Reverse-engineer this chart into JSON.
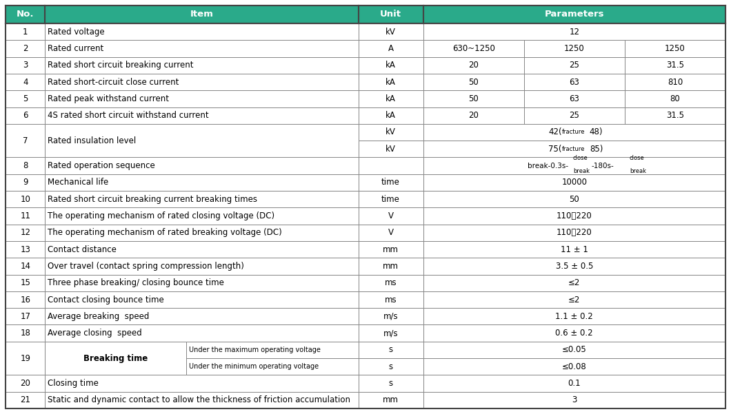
{
  "header_bg": "#2aaa8a",
  "header_text_color": "#ffffff",
  "border_color": "#888888",
  "header_row": [
    "No.",
    "Item",
    "Unit",
    "Parameters"
  ],
  "col_props": [
    0.055,
    0.435,
    0.09,
    0.42
  ],
  "rows": [
    {
      "ri": 1,
      "no": "1",
      "item": "Rated voltage",
      "unit": "kV",
      "params": "12",
      "type": "span1"
    },
    {
      "ri": 2,
      "no": "2",
      "item": "Rated current",
      "unit": "A",
      "params": [
        "630~1250",
        "1250",
        "1250"
      ],
      "type": "three"
    },
    {
      "ri": 3,
      "no": "3",
      "item": "Rated short circuit breaking current",
      "unit": "kA",
      "params": [
        "20",
        "25",
        "31.5"
      ],
      "type": "three"
    },
    {
      "ri": 4,
      "no": "4",
      "item": "Rated short-circuit close current",
      "unit": "kA",
      "params": [
        "50",
        "63",
        "810"
      ],
      "type": "three"
    },
    {
      "ri": 5,
      "no": "5",
      "item": "Rated peak withstand current",
      "unit": "kA",
      "params": [
        "50",
        "63",
        "80"
      ],
      "type": "three"
    },
    {
      "ri": 6,
      "no": "6",
      "item": "4S rated short circuit withstand current",
      "unit": "kA",
      "params": [
        "20",
        "25",
        "31.5"
      ],
      "type": "three"
    },
    {
      "ri": 7,
      "no": "7",
      "item": "Rated insulation level",
      "unit": "kV",
      "params": "42(fracture48)",
      "type": "row7a"
    },
    {
      "ri": 8,
      "no": "",
      "item": "",
      "unit": "kV",
      "params": "75(fracture85)",
      "type": "row7b"
    },
    {
      "ri": 9,
      "no": "8",
      "item": "Rated operation sequence",
      "unit": "",
      "params": "seq",
      "type": "row8"
    },
    {
      "ri": 10,
      "no": "9",
      "item": "Mechanical life",
      "unit": "time",
      "params": "10000",
      "type": "span1"
    },
    {
      "ri": 11,
      "no": "10",
      "item": "Rated short circuit breaking current breaking times",
      "unit": "time",
      "params": "50",
      "type": "span1"
    },
    {
      "ri": 12,
      "no": "11",
      "item": "The operating mechanism of rated closing voltage (DC)",
      "unit": "V",
      "params": "110、220",
      "type": "span1"
    },
    {
      "ri": 13,
      "no": "12",
      "item": "The operating mechanism of rated breaking voltage (DC)",
      "unit": "V",
      "params": "110、220",
      "type": "span1"
    },
    {
      "ri": 14,
      "no": "13",
      "item": "Contact distance",
      "unit": "mm",
      "params": "11 ± 1",
      "type": "span1"
    },
    {
      "ri": 15,
      "no": "14",
      "item": "Over travel (contact spring compression length)",
      "unit": "mm",
      "params": "3.5 ± 0.5",
      "type": "span1"
    },
    {
      "ri": 16,
      "no": "15",
      "item": "Three phase breaking/ closing bounce time",
      "unit": "ms",
      "params": "≤2",
      "type": "span1"
    },
    {
      "ri": 17,
      "no": "16",
      "item": "Contact closing bounce time",
      "unit": "ms",
      "params": "≤2",
      "type": "span1"
    },
    {
      "ri": 18,
      "no": "17",
      "item": "Average breaking  speed",
      "unit": "m/s",
      "params": "1.1 ± 0.2",
      "type": "span1"
    },
    {
      "ri": 19,
      "no": "18",
      "item": "Average closing  speed",
      "unit": "m/s",
      "params": "0.6 ± 0.2",
      "type": "span1"
    },
    {
      "ri": 20,
      "no": "19",
      "item": "Breaking time",
      "sub": "Under the maximum operating voltage",
      "unit": "s",
      "params": "≤0.05",
      "type": "row19a"
    },
    {
      "ri": 21,
      "no": "",
      "item": "",
      "sub": "Under the minimum operating voltage",
      "unit": "s",
      "params": "≤0.08",
      "type": "row19b"
    },
    {
      "ri": 22,
      "no": "20",
      "item": "Closing time",
      "unit": "s",
      "params": "0.1",
      "type": "span1"
    },
    {
      "ri": 23,
      "no": "21",
      "item": "Static and dynamic contact to allow the thickness of friction accumulation",
      "unit": "mm",
      "params": "3",
      "type": "span1"
    }
  ]
}
